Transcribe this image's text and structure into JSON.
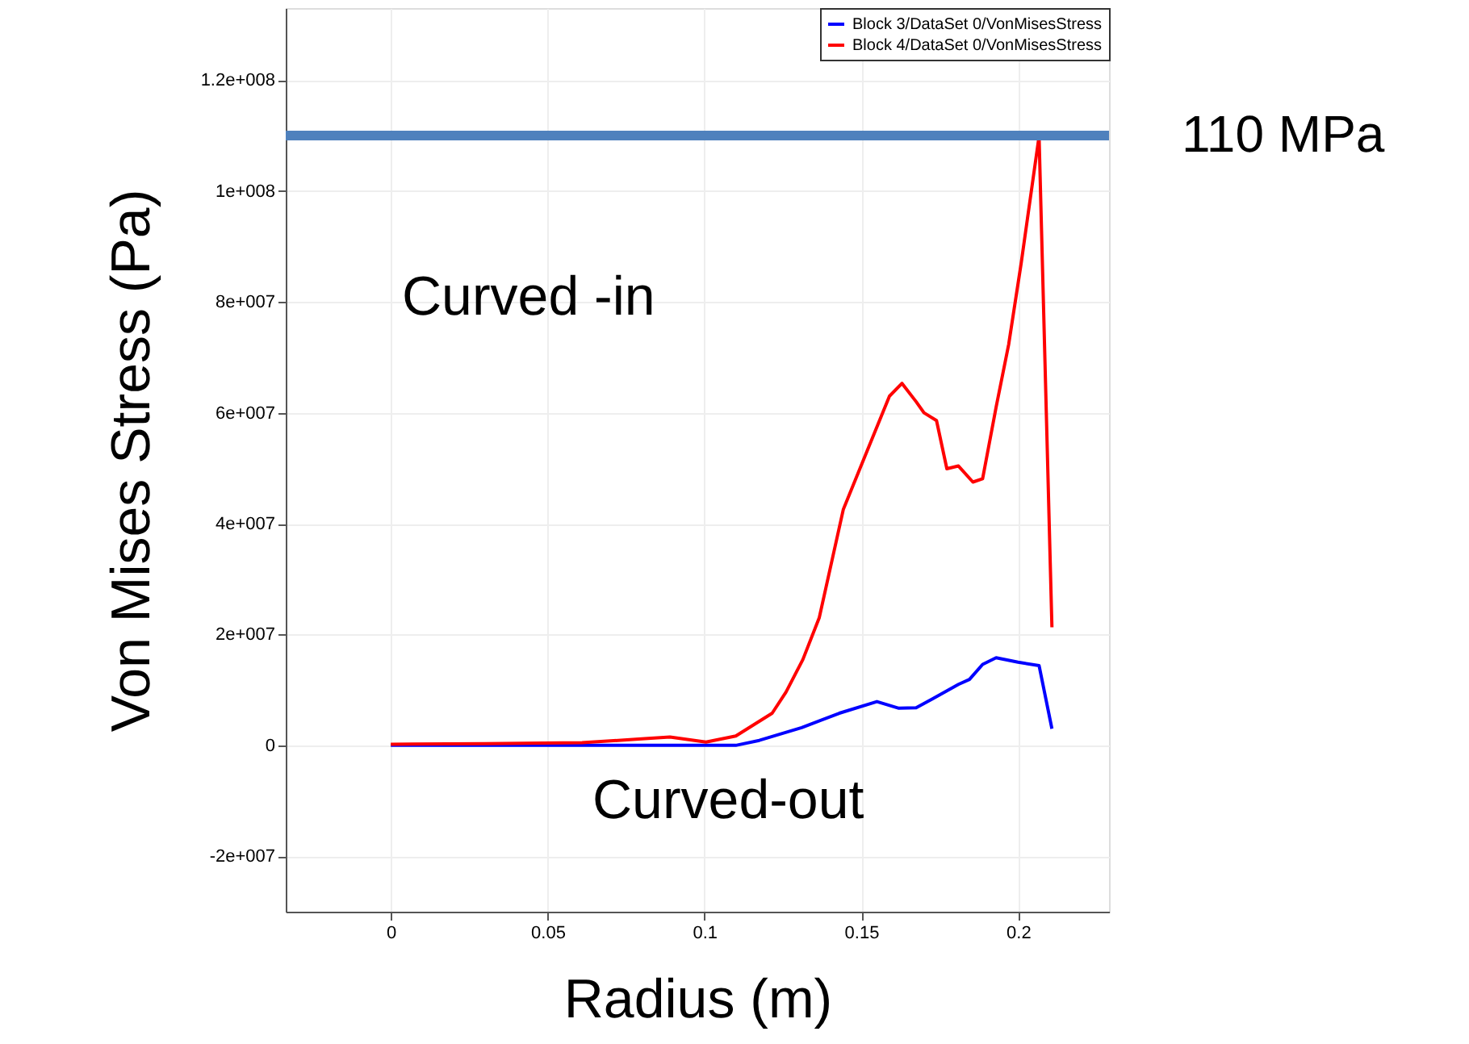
{
  "chart_data": {
    "type": "line",
    "xlabel": "Radius (m)",
    "ylabel": "Von Mises Stress (Pa)",
    "xlim": [
      -0.0335,
      0.229
    ],
    "xticks": [
      0,
      0.05,
      0.1,
      0.15,
      0.2
    ],
    "ylim": [
      -30000000,
      133000000
    ],
    "yticks": [
      {
        "value": -20000000,
        "label": "-2e+007"
      },
      0,
      {
        "value": 20000000,
        "label": "2e+007"
      },
      {
        "value": 40000000,
        "label": "4e+007"
      },
      {
        "value": 60000000,
        "label": "6e+007"
      },
      {
        "value": 80000000,
        "label": "8e+007"
      },
      {
        "value": 100000000,
        "label": "1e+008"
      },
      {
        "value": 120000000,
        "label": "1.2e+008"
      }
    ],
    "grid": true,
    "legend": "top right",
    "marker": "none",
    "line_style": "solid",
    "series": [
      {
        "name": "Block 3/DataSet 0/VonMisesStress",
        "color": "#0000ff",
        "x": [
          0,
          0.05,
          0.1,
          0.11,
          0.1175,
          0.131,
          0.143,
          0.155,
          0.162,
          0.1675,
          0.1727,
          0.181,
          0.1845,
          0.1887,
          0.193,
          0.2,
          0.2067,
          0.2108
        ],
        "values": [
          0,
          0,
          0,
          0,
          900000,
          3200000,
          5800000,
          7900000,
          6700000,
          6800000,
          8400000,
          11000000,
          11900000,
          14600000,
          15800000,
          15000000,
          14400000,
          3000000
        ]
      },
      {
        "name": "Block 4/DataSet 0/VonMisesStress",
        "color": "#ff0000",
        "x": [
          0,
          0.03,
          0.061,
          0.081,
          0.089,
          0.1005,
          0.11,
          0.1216,
          0.126,
          0.1314,
          0.1366,
          0.1443,
          0.151,
          0.159,
          0.163,
          0.1675,
          0.17,
          0.174,
          0.1773,
          0.181,
          0.1856,
          0.1887,
          0.193,
          0.197,
          0.201,
          0.2067,
          0.2108
        ],
        "values": [
          200000,
          300000,
          500000,
          1200000,
          1500000,
          600000,
          1700000,
          5800000,
          9600000,
          15500000,
          23000000,
          42600000,
          51900000,
          63000000,
          65300000,
          62000000,
          60000000,
          58600000,
          49900000,
          50400000,
          47500000,
          48100000,
          61000000,
          72300000,
          87000000,
          109900000,
          21300000
        ]
      }
    ],
    "ref_lines": [
      {
        "axis": "y",
        "value": 110000000,
        "label": "110 MPa",
        "color": "#4f81bd"
      }
    ],
    "annotations": [
      "Curved -in",
      "Curved-out"
    ]
  }
}
